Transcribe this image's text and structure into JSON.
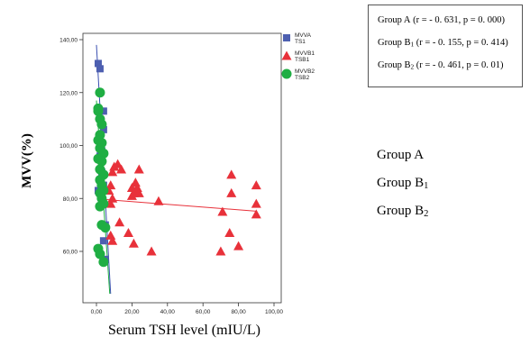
{
  "chart_data": {
    "type": "scatter",
    "ylabel": "MVV(%)",
    "xlabel": "Serum TSH level (mIU/L)",
    "xlim": [
      -5,
      103
    ],
    "ylim": [
      45,
      142
    ],
    "x_ticks": [
      "0,00",
      "20,00",
      "40,00",
      "60,00",
      "80,00",
      "100,00"
    ],
    "y_ticks": [
      "60,00",
      "80,00",
      "100,00",
      "120,00",
      "140,00"
    ],
    "x_tick_values": [
      0,
      20,
      40,
      60,
      80,
      100
    ],
    "y_tick_values": [
      60,
      80,
      100,
      120,
      140
    ],
    "legend_position": "right",
    "series": [
      {
        "name": "MVVA TS1",
        "marker": "square",
        "color": "#4d5fb0",
        "points": [
          [
            1,
            131
          ],
          [
            2,
            129
          ],
          [
            4,
            113
          ],
          [
            4,
            106
          ],
          [
            3,
            98
          ],
          [
            2,
            96
          ],
          [
            3,
            90
          ],
          [
            2,
            87
          ],
          [
            4,
            85
          ],
          [
            1,
            83
          ],
          [
            3,
            80
          ],
          [
            5,
            70
          ],
          [
            4,
            64
          ],
          [
            5,
            57
          ]
        ]
      },
      {
        "name": "MVVB1 TSB1",
        "marker": "triangle",
        "color": "#e8313a",
        "points": [
          [
            10,
            92
          ],
          [
            12,
            93
          ],
          [
            9,
            90
          ],
          [
            14,
            91
          ],
          [
            24,
            91
          ],
          [
            22,
            86
          ],
          [
            20,
            84
          ],
          [
            23,
            84
          ],
          [
            8,
            85
          ],
          [
            7,
            83
          ],
          [
            9,
            80
          ],
          [
            8,
            78
          ],
          [
            22,
            83
          ],
          [
            21,
            82
          ],
          [
            24,
            82
          ],
          [
            20,
            81
          ],
          [
            35,
            79
          ],
          [
            13,
            71
          ],
          [
            18,
            67
          ],
          [
            8,
            66
          ],
          [
            9,
            64
          ],
          [
            21,
            63
          ],
          [
            31,
            60
          ],
          [
            76,
            89
          ],
          [
            76,
            82
          ],
          [
            90,
            85
          ],
          [
            71,
            75
          ],
          [
            90,
            78
          ],
          [
            90,
            74
          ],
          [
            75,
            67
          ],
          [
            80,
            62
          ],
          [
            70,
            60
          ]
        ]
      },
      {
        "name": "MVVB2 TSB2",
        "marker": "circle",
        "color": "#1fae43",
        "points": [
          [
            2,
            120
          ],
          [
            1,
            114
          ],
          [
            1,
            113
          ],
          [
            2,
            110
          ],
          [
            3,
            108
          ],
          [
            2,
            104
          ],
          [
            1,
            102
          ],
          [
            3,
            101
          ],
          [
            2,
            99
          ],
          [
            4,
            97
          ],
          [
            1,
            95
          ],
          [
            3,
            94
          ],
          [
            2,
            91
          ],
          [
            4,
            89
          ],
          [
            2,
            87
          ],
          [
            3,
            85
          ],
          [
            4,
            83
          ],
          [
            2,
            82
          ],
          [
            3,
            80
          ],
          [
            4,
            78
          ],
          [
            2,
            77
          ],
          [
            3,
            70
          ],
          [
            5,
            69
          ],
          [
            1,
            61
          ],
          [
            2,
            59
          ],
          [
            4,
            56
          ]
        ]
      }
    ],
    "fit_lines": [
      {
        "series": "MVVA TS1",
        "color": "#3a4fb0",
        "x": [
          0,
          8
        ],
        "y": [
          138,
          44
        ]
      },
      {
        "series": "MVVB1 TSB1",
        "color": "#e8313a",
        "x": [
          5,
          90
        ],
        "y": [
          79.6,
          75.2
        ]
      },
      {
        "series": "MVVB2 TSB2",
        "color": "#1fae43",
        "x": [
          0,
          7.5
        ],
        "y": [
          117,
          44
        ]
      }
    ],
    "stats": [
      {
        "group": "Group A",
        "sub": "",
        "stat": " (r = - 0. 631, p = 0. 000)"
      },
      {
        "group": "Group B",
        "sub": "1",
        "stat": " (r = - 0. 155, p =  0. 414)"
      },
      {
        "group": "Group B",
        "sub": "2",
        "stat": " (r = - 0. 461, p = 0. 01)"
      }
    ],
    "groups": [
      {
        "main": "Group A",
        "sub": ""
      },
      {
        "main": "Group B",
        "sub": "1"
      },
      {
        "main": "Group B",
        "sub": "2"
      }
    ]
  }
}
